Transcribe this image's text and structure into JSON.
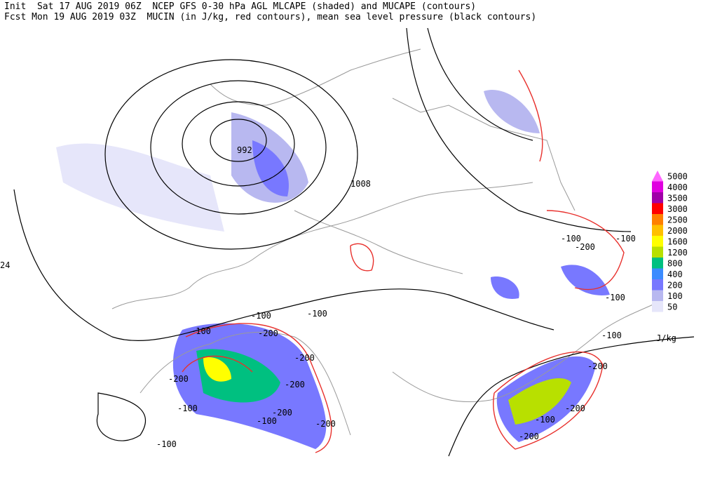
{
  "header": {
    "line1": "Init  Sat 17 AUG 2019 06Z  NCEP GFS 0-30 hPa AGL MLCAPE (shaded) and MUCAPE (contours)",
    "line2": "Fcst Mon 19 AUG 2019 03Z  MUCIN (in J/kg, red contours), mean sea level pressure (black contours)"
  },
  "pressure_labels": [
    992,
    1008,
    24
  ],
  "cin_labels": [
    -100,
    -100,
    -100,
    -200,
    -200,
    -200,
    -200,
    -100,
    -100,
    -200,
    -200,
    -100,
    -100,
    -200,
    -100,
    -100,
    -100,
    -200,
    -200,
    -100,
    -200
  ],
  "legend": {
    "levels": [
      5000,
      4000,
      3500,
      3000,
      2500,
      2000,
      1600,
      1200,
      800,
      400,
      200,
      100,
      50
    ],
    "colors": [
      "#ff66ff",
      "#e000e0",
      "#a000a8",
      "#ff0000",
      "#ff8000",
      "#ffc000",
      "#ffff00",
      "#b8e000",
      "#00c080",
      "#3c8cff",
      "#7878ff",
      "#b8b8f0",
      "#e6e6fa"
    ],
    "unit": "J/kg"
  }
}
